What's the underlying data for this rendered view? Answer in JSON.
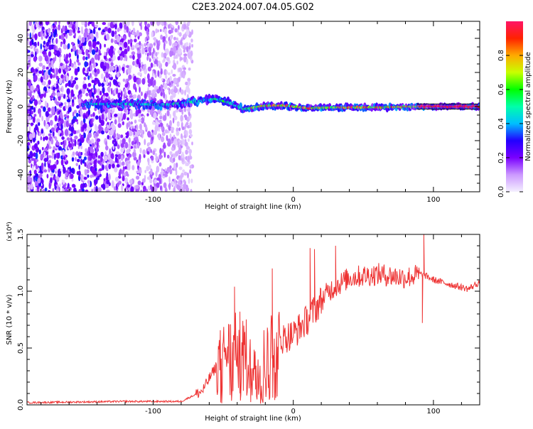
{
  "title": "C2E3.2024.007.04.05.G02",
  "chart_data": [
    {
      "type": "heatmap",
      "xlabel": "Height of straight line (km)",
      "ylabel": "Frequency (Hz)",
      "xlim": [
        -190,
        133
      ],
      "ylim": [
        -50,
        50
      ],
      "xticks": [
        -100,
        0,
        100
      ],
      "xtick_labels": [
        "-100",
        "0",
        "100"
      ],
      "yticks": [
        -40,
        -20,
        0,
        20,
        40
      ],
      "ytick_labels": [
        "-40",
        "-20",
        "0",
        "20",
        "40"
      ],
      "colorbar": {
        "label": "Normalized spectral amplitude",
        "range": [
          0,
          1
        ],
        "ticks": [
          0.0,
          0.2,
          0.4,
          0.6,
          0.8
        ],
        "tick_labels": [
          "0.0",
          "0.2",
          "0.4",
          "0.6",
          "0.8"
        ],
        "colors": [
          "#f4f0ff",
          "#cc99ff",
          "#7a00ff",
          "#2200ff",
          "#00bfff",
          "#00ffaa",
          "#00ff00",
          "#c8ff00",
          "#ffaa00",
          "#ff2200",
          "#ff1466"
        ]
      },
      "ridge": [
        {
          "x": -150,
          "y": 1.5
        },
        {
          "x": -120,
          "y": 1.5
        },
        {
          "x": -90,
          "y": 1.0
        },
        {
          "x": -70,
          "y": 3.0
        },
        {
          "x": -55,
          "y": 4.5
        },
        {
          "x": -45,
          "y": 2.0
        },
        {
          "x": -35,
          "y": -1.5
        },
        {
          "x": -20,
          "y": 0.5
        },
        {
          "x": -5,
          "y": 0.5
        },
        {
          "x": 10,
          "y": -1.0
        },
        {
          "x": 30,
          "y": -0.5
        },
        {
          "x": 60,
          "y": -0.5
        },
        {
          "x": 90,
          "y": 0
        },
        {
          "x": 133,
          "y": 0
        }
      ]
    },
    {
      "type": "line",
      "xlabel": "Height of straight line (km)",
      "ylabel": "SNR (10 * v/v)",
      "scale_label": "(x10⁴)",
      "xlim": [
        -190,
        133
      ],
      "ylim": [
        0,
        1.5
      ],
      "xticks": [
        -100,
        0,
        100
      ],
      "xtick_labels": [
        "-100",
        "0",
        "100"
      ],
      "yticks": [
        0,
        0.5,
        1.0,
        1.5
      ],
      "ytick_labels": [
        "0.0",
        "0.5",
        "1.0",
        "1.5"
      ],
      "color": "#ee3333",
      "envelope": [
        {
          "x": -190,
          "y": 0.02
        },
        {
          "x": -120,
          "y": 0.03
        },
        {
          "x": -80,
          "y": 0.03
        },
        {
          "x": -65,
          "y": 0.12
        },
        {
          "x": -50,
          "y": 0.45
        },
        {
          "x": -40,
          "y": 0.55
        },
        {
          "x": -35,
          "y": 0.5
        },
        {
          "x": -25,
          "y": 0.35
        },
        {
          "x": -15,
          "y": 0.55
        },
        {
          "x": 0,
          "y": 0.62
        },
        {
          "x": 10,
          "y": 0.75
        },
        {
          "x": 25,
          "y": 1.0
        },
        {
          "x": 40,
          "y": 1.12
        },
        {
          "x": 60,
          "y": 1.15
        },
        {
          "x": 80,
          "y": 1.12
        },
        {
          "x": 92,
          "y": 1.15
        },
        {
          "x": 100,
          "y": 1.1
        },
        {
          "x": 115,
          "y": 1.05
        },
        {
          "x": 125,
          "y": 1.02
        },
        {
          "x": 133,
          "y": 1.08
        }
      ],
      "spikes": [
        {
          "x": -42,
          "y": 1.04
        },
        {
          "x": -38,
          "y": 0.82
        },
        {
          "x": -15,
          "y": 1.2
        },
        {
          "x": 12,
          "y": 1.38
        },
        {
          "x": 15,
          "y": 1.37
        },
        {
          "x": 30,
          "y": 1.4
        },
        {
          "x": 93,
          "y": 1.5
        },
        {
          "x": 92,
          "y": 0.72
        }
      ]
    }
  ]
}
